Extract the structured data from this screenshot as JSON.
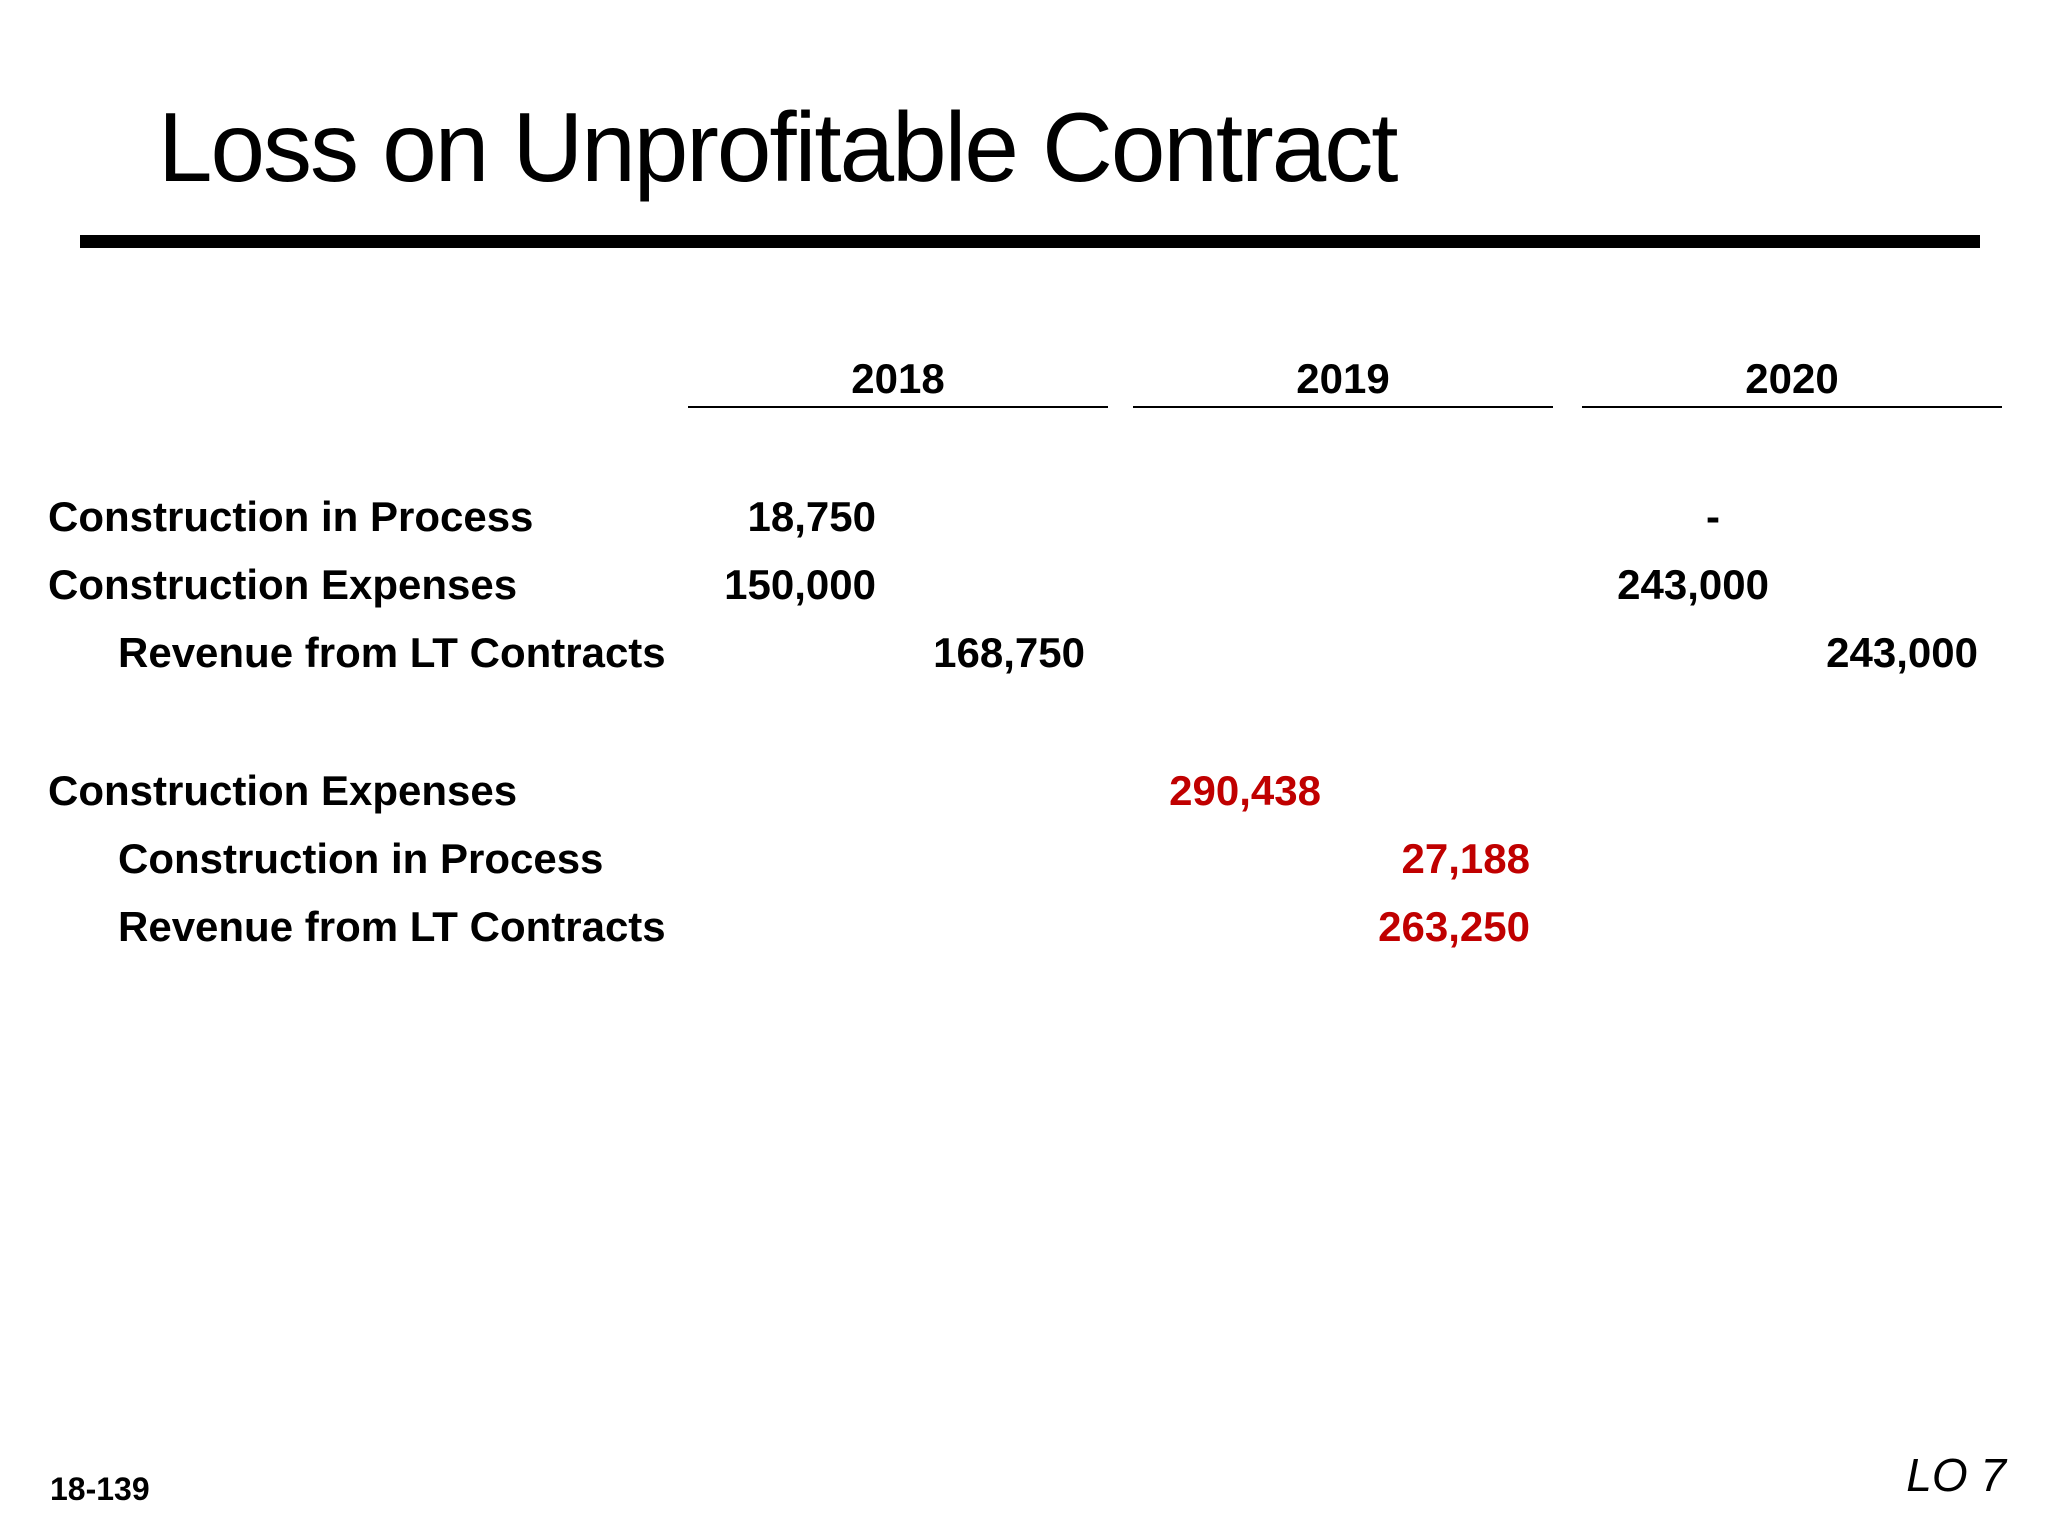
{
  "title": "Loss on Unprofitable Contract",
  "years": [
    "2018",
    "2019",
    "2020"
  ],
  "entries": {
    "row1_label": "Construction in Process",
    "row2_label": "Construction Expenses",
    "row3_label": "Revenue from LT Contracts",
    "row4_label": "Construction Expenses",
    "row5_label": "Construction in Process",
    "row6_label": "Revenue from LT Contracts",
    "y2018_cip_debit": "18,750",
    "y2018_expenses_debit": "150,000",
    "y2018_revenue_credit": "168,750",
    "y2019_expenses_debit": "290,438",
    "y2019_cip_credit": "27,188",
    "y2019_revenue_credit": "263,250",
    "y2020_cip_debit": "-",
    "y2020_expenses_debit": "243,000",
    "y2020_revenue_credit": "243,000"
  },
  "footer": {
    "slide_number": "18-139",
    "learning_objective": "LO 7"
  },
  "colors": {
    "highlight": "#c00000",
    "text": "#000000"
  }
}
